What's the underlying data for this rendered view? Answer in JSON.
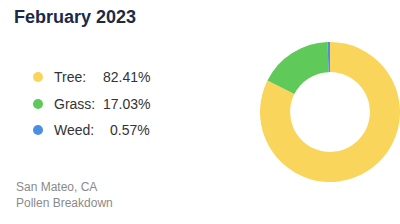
{
  "chart_data": {
    "type": "pie",
    "title": "February 2023",
    "categories": [
      "Tree:",
      "Grass:",
      "Weed:"
    ],
    "values": [
      82.41,
      17.03,
      0.57
    ],
    "value_labels": [
      "82.41%",
      "17.03%",
      "0.57%"
    ],
    "colors": [
      "#f9d55b",
      "#5fc95a",
      "#4a90e2"
    ],
    "legend": "left",
    "annotations": [
      "San Mateo, CA",
      "Pollen Breakdown"
    ]
  }
}
